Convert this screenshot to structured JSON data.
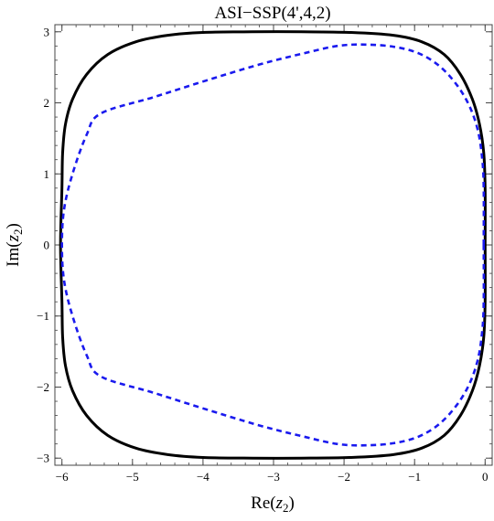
{
  "chart_data": {
    "type": "line",
    "title": "ASI−SSP(4',4,2)",
    "xlabel_prefix": "Re(",
    "xlabel_var": "z",
    "xlabel_sub": "2",
    "xlabel_suffix": ")",
    "ylabel_prefix": "Im(",
    "ylabel_var": "z",
    "ylabel_sub": "2",
    "ylabel_suffix": ")",
    "xlim": [
      -6.1,
      0.1
    ],
    "ylim": [
      -3.1,
      3.1
    ],
    "xticks": [
      {
        "value": -6,
        "label": "−6"
      },
      {
        "value": -5,
        "label": "−5"
      },
      {
        "value": -4,
        "label": "−4"
      },
      {
        "value": -3,
        "label": "−3"
      },
      {
        "value": -2,
        "label": "−2"
      },
      {
        "value": -1,
        "label": "−1"
      },
      {
        "value": 0,
        "label": "0"
      }
    ],
    "yticks": [
      {
        "value": -3,
        "label": "−3"
      },
      {
        "value": -2,
        "label": "−2"
      },
      {
        "value": -1,
        "label": "−1"
      },
      {
        "value": 0,
        "label": "0"
      },
      {
        "value": 1,
        "label": "1"
      },
      {
        "value": 2,
        "label": "2"
      },
      {
        "value": 3,
        "label": "3"
      }
    ],
    "minor_tick_step": 0.2,
    "grid": false,
    "series": [
      {
        "style": "solid",
        "color": "#000000",
        "points": [
          [
            0,
            0
          ],
          [
            0,
            0.8
          ],
          [
            -0.02,
            1.3
          ],
          [
            -0.08,
            1.7
          ],
          [
            -0.18,
            2.05
          ],
          [
            -0.35,
            2.4
          ],
          [
            -0.58,
            2.68
          ],
          [
            -0.9,
            2.86
          ],
          [
            -1.3,
            2.95
          ],
          [
            -1.9,
            2.99
          ],
          [
            -2.6,
            3.0
          ],
          [
            -3.3,
            3.0
          ],
          [
            -4.0,
            2.99
          ],
          [
            -4.5,
            2.95
          ],
          [
            -4.95,
            2.86
          ],
          [
            -5.35,
            2.68
          ],
          [
            -5.65,
            2.4
          ],
          [
            -5.85,
            2.05
          ],
          [
            -5.95,
            1.7
          ],
          [
            -5.99,
            1.3
          ],
          [
            -6.0,
            0.8
          ],
          [
            -6.02,
            0
          ],
          [
            -6.0,
            -0.8
          ],
          [
            -5.99,
            -1.3
          ],
          [
            -5.95,
            -1.7
          ],
          [
            -5.85,
            -2.05
          ],
          [
            -5.65,
            -2.4
          ],
          [
            -5.35,
            -2.68
          ],
          [
            -4.95,
            -2.86
          ],
          [
            -4.5,
            -2.95
          ],
          [
            -4.0,
            -2.99
          ],
          [
            -3.3,
            -3.0
          ],
          [
            -2.6,
            -3.0
          ],
          [
            -1.9,
            -2.99
          ],
          [
            -1.3,
            -2.95
          ],
          [
            -0.9,
            -2.86
          ],
          [
            -0.58,
            -2.68
          ],
          [
            -0.35,
            -2.4
          ],
          [
            -0.18,
            -2.05
          ],
          [
            -0.08,
            -1.7
          ],
          [
            -0.02,
            -1.3
          ],
          [
            0,
            -0.8
          ],
          [
            0,
            0
          ]
        ]
      },
      {
        "style": "dashed",
        "color": "#1a1aee",
        "points": [
          [
            -0.02,
            0
          ],
          [
            -0.02,
            0.8
          ],
          [
            -0.04,
            1.2
          ],
          [
            -0.1,
            1.6
          ],
          [
            -0.22,
            1.95
          ],
          [
            -0.4,
            2.25
          ],
          [
            -0.65,
            2.52
          ],
          [
            -0.95,
            2.7
          ],
          [
            -1.3,
            2.79
          ],
          [
            -1.7,
            2.82
          ],
          [
            -2.1,
            2.8
          ],
          [
            -2.6,
            2.69
          ],
          [
            -3.2,
            2.54
          ],
          [
            -4.0,
            2.3
          ],
          [
            -4.7,
            2.08
          ],
          [
            -5.45,
            1.85
          ],
          [
            -5.65,
            1.55
          ],
          [
            -5.85,
            1.0
          ],
          [
            -5.97,
            0.5
          ],
          [
            -6.0,
            0
          ],
          [
            -5.97,
            -0.5
          ],
          [
            -5.85,
            -1.0
          ],
          [
            -5.65,
            -1.55
          ],
          [
            -5.45,
            -1.85
          ],
          [
            -4.7,
            -2.08
          ],
          [
            -4.0,
            -2.3
          ],
          [
            -3.2,
            -2.54
          ],
          [
            -2.6,
            -2.69
          ],
          [
            -2.1,
            -2.8
          ],
          [
            -1.7,
            -2.82
          ],
          [
            -1.3,
            -2.79
          ],
          [
            -0.95,
            -2.7
          ],
          [
            -0.65,
            -2.52
          ],
          [
            -0.4,
            -2.25
          ],
          [
            -0.22,
            -1.95
          ],
          [
            -0.1,
            -1.6
          ],
          [
            -0.04,
            -1.2
          ],
          [
            -0.02,
            -0.8
          ],
          [
            -0.02,
            0
          ]
        ]
      }
    ]
  }
}
